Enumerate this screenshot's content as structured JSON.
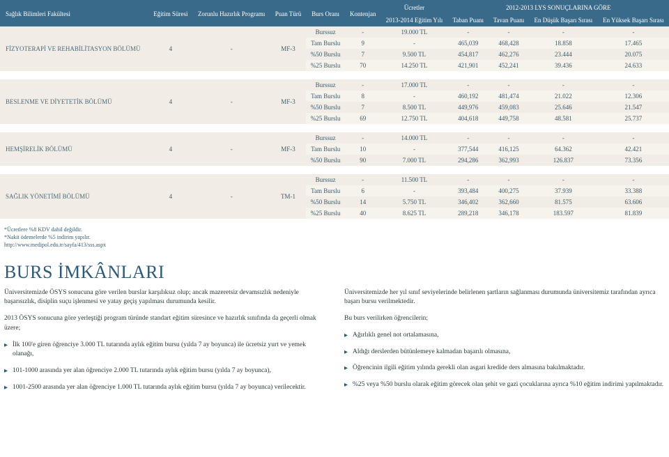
{
  "colors": {
    "header_bg": "#3a6a8a",
    "header_fg": "#ffffff",
    "row_a": "#f1ede6",
    "row_b": "#f6f2ec",
    "text": "#3a5a6a",
    "accent": "#2c5a78"
  },
  "header": {
    "faculty": "Sağlık Bilimleri Fakültesi",
    "duration": "Eğitim Süresi",
    "prep": "Zorunlu Hazırlık Programı",
    "score_type": "Puan Türü",
    "burs_group": "",
    "burs_rate": "Burs Oranı",
    "quota": "Kontenjan",
    "fees_group": "Ücretler",
    "fees_year": "2013-2014 Eğitim Yılı",
    "lys_group": "2012-2013 LYS SONUÇLARINA GÖRE",
    "base_score": "Taban Puanı",
    "ceiling_score": "Tavan Puanı",
    "low_rank": "En Düşük Başarı Sırası",
    "high_rank": "En Yüksek Başarı Sırası"
  },
  "departments": [
    {
      "name": "FİZYOTERAPİ VE REHABİLİTASYON BÖLÜMÜ",
      "duration": "4",
      "prep": "-",
      "score_type": "MF-3",
      "rows": [
        {
          "rate": "Burssuz",
          "quota": "-",
          "fee": "19.000 TL",
          "base": "-",
          "ceil": "-",
          "low": "-",
          "high": "-"
        },
        {
          "rate": "Tam Burslu",
          "quota": "9",
          "fee": "-",
          "base": "465,039",
          "ceil": "468,428",
          "low": "18.858",
          "high": "17.465"
        },
        {
          "rate": "%50 Burslu",
          "quota": "7",
          "fee": "9.500 TL",
          "base": "454,817",
          "ceil": "462,276",
          "low": "23.444",
          "high": "20.075"
        },
        {
          "rate": "%25 Burslu",
          "quota": "70",
          "fee": "14.250 TL",
          "base": "421,901",
          "ceil": "452,241",
          "low": "39.436",
          "high": "24.633"
        }
      ]
    },
    {
      "name": "BESLENME VE DİYETETİK BÖLÜMÜ",
      "duration": "4",
      "prep": "-",
      "score_type": "MF-3",
      "rows": [
        {
          "rate": "Burssuz",
          "quota": "-",
          "fee": "17.000 TL",
          "base": "-",
          "ceil": "-",
          "low": "-",
          "high": "-"
        },
        {
          "rate": "Tam Burslu",
          "quota": "8",
          "fee": "-",
          "base": "460,192",
          "ceil": "481,474",
          "low": "21.022",
          "high": "12.306"
        },
        {
          "rate": "%50 Burslu",
          "quota": "7",
          "fee": "8.500 TL",
          "base": "449,976",
          "ceil": "459,083",
          "low": "25.646",
          "high": "21.547"
        },
        {
          "rate": "%25 Burslu",
          "quota": "69",
          "fee": "12.750 TL",
          "base": "404,618",
          "ceil": "449,758",
          "low": "48.581",
          "high": "25.737"
        }
      ]
    },
    {
      "name": "HEMŞİRELİK BÖLÜMÜ",
      "duration": "4",
      "prep": "-",
      "score_type": "MF-3",
      "rows": [
        {
          "rate": "Burssuz",
          "quota": "-",
          "fee": "14.000 TL",
          "base": "-",
          "ceil": "-",
          "low": "-",
          "high": "-"
        },
        {
          "rate": "Tam Burslu",
          "quota": "10",
          "fee": "-",
          "base": "377,544",
          "ceil": "416,125",
          "low": "64.362",
          "high": "42.421"
        },
        {
          "rate": "%50 Burslu",
          "quota": "90",
          "fee": "7.000 TL",
          "base": "294,286",
          "ceil": "362,993",
          "low": "126.837",
          "high": "73.356"
        }
      ]
    },
    {
      "name": "SAĞLIK YÖNETİMİ BÖLÜMÜ",
      "duration": "4",
      "prep": "-",
      "score_type": "TM-1",
      "rows": [
        {
          "rate": "Burssuz",
          "quota": "-",
          "fee": "11.500 TL",
          "base": "-",
          "ceil": "-",
          "low": "-",
          "high": "-"
        },
        {
          "rate": "Tam Burslu",
          "quota": "6",
          "fee": "-",
          "base": "393,484",
          "ceil": "400,275",
          "low": "37.939",
          "high": "33.388"
        },
        {
          "rate": "%50 Burslu",
          "quota": "14",
          "fee": "5.750 TL",
          "base": "346,402",
          "ceil": "362,660",
          "low": "81.575",
          "high": "63.606"
        },
        {
          "rate": "%25 Burslu",
          "quota": "40",
          "fee": "8.625 TL",
          "base": "289,218",
          "ceil": "346,178",
          "low": "183.597",
          "high": "81.839"
        }
      ]
    }
  ],
  "footnotes": {
    "line1": "*Ücretlere %8 KDV dahil değildir.",
    "line2": "*Nakit ödemelerde %5 indirim yapılır.",
    "url": "http://www.medipol.edu.tr/sayfa/413/sss.aspx"
  },
  "headline": "BURS İMKÂNLARI",
  "left_col": {
    "p1": "Üniversitemizde ÖSYS sonucuna göre verilen burslar karşılıksız olup; ancak mazeretsiz devamsızlık nedeniyle başarısızlık, disiplin suçu işlenmesi ve yatay geçiş yapılması durumunda kesilir.",
    "p2": "2013 ÖSYS sonucuna göre yerleştiği program türünde standart eğitim süresince ve hazırlık sınıfında da geçerli olmak üzere;",
    "b1": "İlk 100'e giren öğrenciye 3.000 TL tutarında aylık eğitim bursu (yılda 7 ay boyunca) ile ücretsiz yurt ve yemek olanağı,",
    "b2": "101-1000 arasında yer alan öğrenciye 2.000 TL tutarında aylık eğitim bursu (yılda 7 ay boyunca),",
    "b3": "1001-2500 arasında yer alan öğrenciye 1.000 TL tutarında aylık eğitim bursu (yılda 7 ay boyunca) verilecektir."
  },
  "right_col": {
    "p1": "Üniversitemizde her yıl sınıf seviyelerinde belirlenen şartların sağlanması durumunda üniversitemiz tarafından ayrıca başarı bursu verilmektedir.",
    "p2": "Bu burs verilirken öğrencilerin;",
    "b1": "Ağırlıklı genel not ortalamasına,",
    "b2": "Aldığı derslerden bütünlemeye kalmadan başarılı olmasına,",
    "b3": "Öğrencinin ilgili eğitim yılında gerekli olan asgari kredide ders almasına bakılmaktadır.",
    "b4": "%25 veya %50 burslu olarak eğitim görecek olan şehit ve gazi çocuklarına ayrıca %10 eğitim indirimi yapılmaktadır."
  }
}
